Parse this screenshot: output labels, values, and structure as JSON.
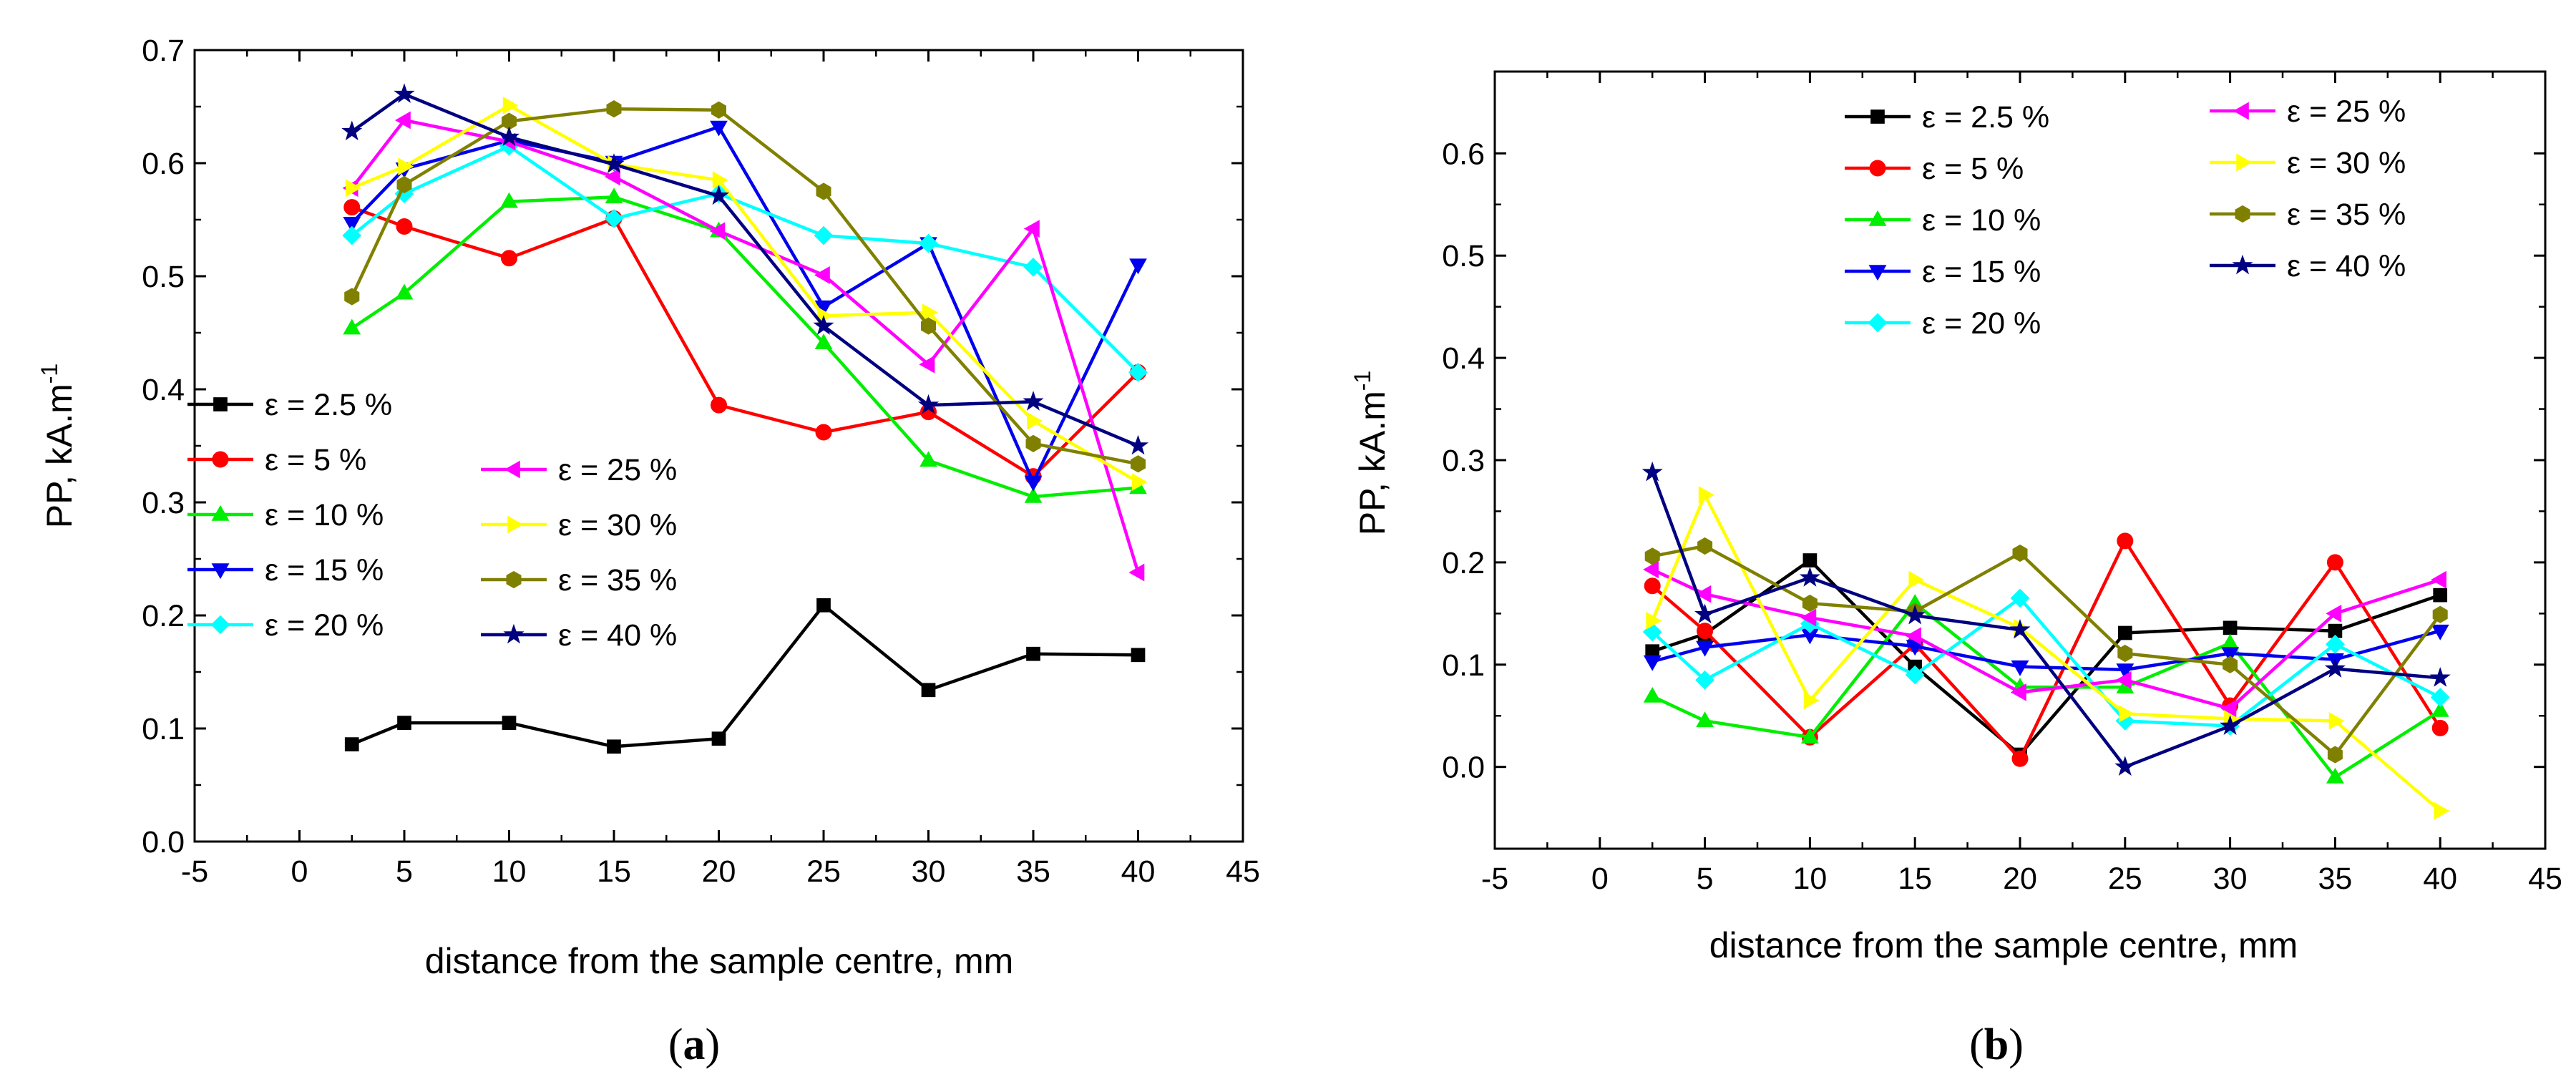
{
  "colors": {
    "2.5": "#000000",
    "5": "#ff0000",
    "10": "#00ee00",
    "15": "#0000ee",
    "20": "#00ffff",
    "25": "#ff00ff",
    "30": "#ffff00",
    "35": "#808000",
    "40": "#000080"
  },
  "chart_data": [
    {
      "type": "line",
      "panel_label": "(a)",
      "panel_letter": "a",
      "xlabel": "distance from the sample centre, mm",
      "ylabel": "PP, kA.m",
      "ylabel_exp": "-1",
      "xlim": [
        -5,
        45
      ],
      "ylim": [
        0,
        0.7
      ],
      "xticks": [
        "-5",
        "0",
        "5",
        "10",
        "15",
        "20",
        "25",
        "30",
        "35",
        "40",
        "45"
      ],
      "yticks": [
        "0.0",
        "0.1",
        "0.2",
        "0.3",
        "0.4",
        "0.5",
        "0.6",
        "0.7"
      ],
      "x": [
        2.5,
        5,
        10,
        15,
        20,
        25,
        30,
        35,
        40
      ],
      "series": [
        {
          "key": "2.5",
          "label": "ε = 2.5 %",
          "marker": "square",
          "values": [
            0.086,
            0.105,
            0.105,
            0.084,
            0.091,
            0.209,
            0.134,
            0.166,
            0.165
          ]
        },
        {
          "key": "5",
          "label": "ε = 5 %",
          "marker": "circle",
          "values": [
            0.561,
            0.544,
            0.516,
            0.551,
            0.386,
            0.362,
            0.38,
            0.323,
            0.415
          ]
        },
        {
          "key": "10",
          "label": "ε = 10 %",
          "marker": "triangle-up",
          "values": [
            0.454,
            0.485,
            0.566,
            0.57,
            0.54,
            0.441,
            0.337,
            0.305,
            0.313
          ]
        },
        {
          "key": "15",
          "label": "ε = 15 %",
          "marker": "triangle-down",
          "values": [
            0.547,
            0.595,
            0.62,
            0.601,
            0.632,
            0.473,
            0.529,
            0.318,
            0.51
          ]
        },
        {
          "key": "20",
          "label": "ε = 20 %",
          "marker": "diamond",
          "values": [
            0.536,
            0.573,
            0.615,
            0.551,
            0.573,
            0.536,
            0.529,
            0.508,
            0.415
          ]
        },
        {
          "key": "25",
          "label": "ε = 25 %",
          "marker": "triangle-left",
          "values": [
            0.578,
            0.638,
            0.619,
            0.588,
            0.54,
            0.501,
            0.422,
            0.542,
            0.238
          ]
        },
        {
          "key": "30",
          "label": "ε = 30 %",
          "marker": "triangle-right",
          "values": [
            0.578,
            0.597,
            0.651,
            0.599,
            0.585,
            0.465,
            0.468,
            0.372,
            0.318
          ]
        },
        {
          "key": "35",
          "label": "ε = 35 %",
          "marker": "hexagon",
          "values": [
            0.482,
            0.581,
            0.637,
            0.648,
            0.647,
            0.575,
            0.456,
            0.352,
            0.334
          ]
        },
        {
          "key": "40",
          "label": "ε = 40 %",
          "marker": "star",
          "values": [
            0.628,
            0.661,
            0.623,
            0.599,
            0.571,
            0.456,
            0.386,
            0.389,
            0.35
          ]
        }
      ]
    },
    {
      "type": "line",
      "panel_label": "(b)",
      "panel_letter": "b",
      "xlabel": "distance from the sample centre, mm",
      "ylabel": "PP, kA.m",
      "ylabel_exp": "-1",
      "xlim": [
        -5,
        45
      ],
      "ylim": [
        -0.08,
        0.68
      ],
      "xticks": [
        "-5",
        "0",
        "5",
        "10",
        "15",
        "20",
        "25",
        "30",
        "35",
        "40",
        "45"
      ],
      "yticks": [
        "0.0",
        "0.1",
        "0.2",
        "0.3",
        "0.4",
        "0.5",
        "0.6"
      ],
      "x": [
        2.5,
        5,
        10,
        15,
        20,
        25,
        30,
        35,
        40
      ],
      "series": [
        {
          "key": "2.5",
          "label": "ε = 2.5 %",
          "marker": "square",
          "values": [
            0.113,
            0.13,
            0.202,
            0.098,
            0.012,
            0.131,
            0.136,
            0.133,
            0.168
          ]
        },
        {
          "key": "5",
          "label": "ε = 5 %",
          "marker": "circle",
          "values": [
            0.177,
            0.133,
            0.029,
            0.12,
            0.008,
            0.221,
            0.06,
            0.2,
            0.038
          ]
        },
        {
          "key": "10",
          "label": "ε = 10 %",
          "marker": "triangle-up",
          "values": [
            0.069,
            0.045,
            0.029,
            0.16,
            0.078,
            0.078,
            0.121,
            -0.01,
            0.055
          ]
        },
        {
          "key": "15",
          "label": "ε = 15 %",
          "marker": "triangle-down",
          "values": [
            0.103,
            0.117,
            0.129,
            0.118,
            0.098,
            0.095,
            0.111,
            0.105,
            0.133
          ]
        },
        {
          "key": "20",
          "label": "ε = 20 %",
          "marker": "diamond",
          "values": [
            0.132,
            0.085,
            0.14,
            0.09,
            0.165,
            0.045,
            0.04,
            0.12,
            0.068
          ]
        },
        {
          "key": "25",
          "label": "ε = 25 %",
          "marker": "triangle-left",
          "values": [
            0.193,
            0.169,
            0.146,
            0.128,
            0.073,
            0.085,
            0.057,
            0.15,
            0.183
          ]
        },
        {
          "key": "30",
          "label": "ε = 30 %",
          "marker": "triangle-right",
          "values": [
            0.143,
            0.266,
            0.065,
            0.183,
            0.136,
            0.052,
            0.047,
            0.045,
            -0.043
          ]
        },
        {
          "key": "35",
          "label": "ε = 35 %",
          "marker": "hexagon",
          "values": [
            0.206,
            0.216,
            0.16,
            0.152,
            0.209,
            0.111,
            0.1,
            0.012,
            0.149
          ]
        },
        {
          "key": "40",
          "label": "ε = 40 %",
          "marker": "star",
          "values": [
            0.288,
            0.149,
            0.185,
            0.148,
            0.134,
            0.0,
            0.04,
            0.096,
            0.087
          ]
        }
      ]
    }
  ]
}
